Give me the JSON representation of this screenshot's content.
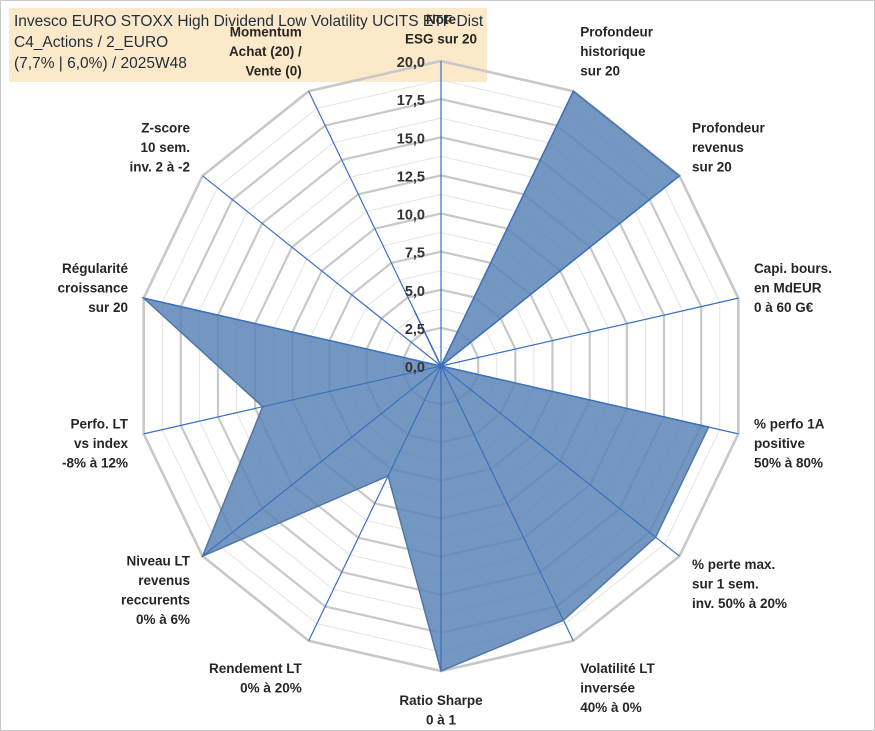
{
  "header": {
    "line1": "Invesco EURO STOXX High Dividend Low Volatility UCITS ETF Dist",
    "line2": "C4_Actions / 2_EURO",
    "line3": "(7,7% | 6,0%) / 2025W48"
  },
  "chart_data": {
    "type": "radar",
    "rmin": 0,
    "rmax": 20,
    "ticks": [
      "0,0",
      "2,5",
      "5,0",
      "7,5",
      "10,0",
      "12,5",
      "15,0",
      "17,5",
      "20,0"
    ],
    "tick_values": [
      0,
      2.5,
      5,
      7.5,
      10,
      12.5,
      15,
      17.5,
      20
    ],
    "axes": [
      {
        "label": [
          "Note",
          "ESG sur 20"
        ],
        "value": 0
      },
      {
        "label": [
          "Profondeur",
          "historique",
          "sur 20"
        ],
        "value": 20
      },
      {
        "label": [
          "Profondeur",
          "revenus",
          "sur 20"
        ],
        "value": 20
      },
      {
        "label": [
          "Capi. bours.",
          "en MdEUR",
          "0 à 60 G€"
        ],
        "value": 0
      },
      {
        "label": [
          "% perfo 1A",
          "positive",
          "50% à 80%"
        ],
        "value": 18
      },
      {
        "label": [
          "% perte max.",
          "sur 1 sem.",
          "inv. 50% à 20%"
        ],
        "value": 18
      },
      {
        "label": [
          "Volatilité LT",
          "inversée",
          "40% à 0%"
        ],
        "value": 18.5
      },
      {
        "label": [
          "Ratio Sharpe",
          "0 à 1"
        ],
        "value": 20
      },
      {
        "label": [
          "Rendement LT",
          "0% à 20%"
        ],
        "value": 8
      },
      {
        "label": [
          "Niveau LT",
          "revenus",
          "reccurents",
          "0% à 6%"
        ],
        "value": 20
      },
      {
        "label": [
          "Perfo. LT",
          "vs index",
          "-8% à 12%"
        ],
        "value": 12
      },
      {
        "label": [
          "Régularité",
          "croissance",
          "sur 20"
        ],
        "value": 20
      },
      {
        "label": [
          "Z-score",
          "10 sem.",
          "inv. 2 à -2"
        ],
        "value": 0
      },
      {
        "label": [
          "Momentum",
          "Achat (20) /",
          "Vente (0)"
        ],
        "value": 4
      }
    ],
    "colors": {
      "fill": "#5b85b5",
      "stroke": "#4f78a8",
      "spoke": "#3a6fc4",
      "grid_major": "#c8c8c8",
      "grid_minor": "#e3e3e3"
    }
  }
}
